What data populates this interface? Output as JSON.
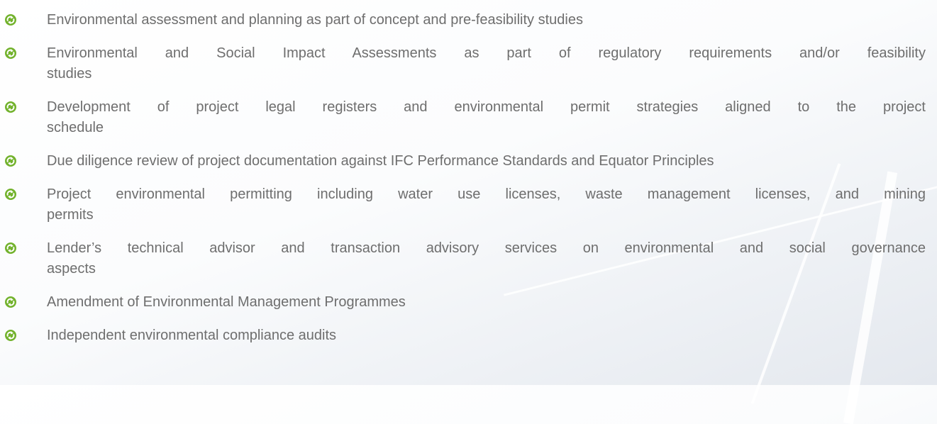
{
  "items": [
    {
      "lines": [
        "Environmental assessment and planning as part of concept and pre-feasibility studies"
      ]
    },
    {
      "lines": [
        "Environmental and Social Impact Assessments as part of regulatory requirements and/or feasibility",
        "studies"
      ]
    },
    {
      "lines": [
        "Development of project legal registers and environmental permit strategies aligned to the project",
        "schedule"
      ]
    },
    {
      "lines": [
        "Due diligence review of project documentation against IFC Performance Standards and Equator Principles"
      ]
    },
    {
      "lines": [
        "Project environmental permitting including water use licenses, waste management licenses, and mining",
        "permits"
      ]
    },
    {
      "lines": [
        "Lender’s technical advisor and transaction advisory services on environmental and social governance",
        "aspects"
      ]
    },
    {
      "lines": [
        "Amendment of Environmental Management Programmes"
      ]
    },
    {
      "lines": [
        "Independent environmental compliance audits"
      ]
    }
  ]
}
